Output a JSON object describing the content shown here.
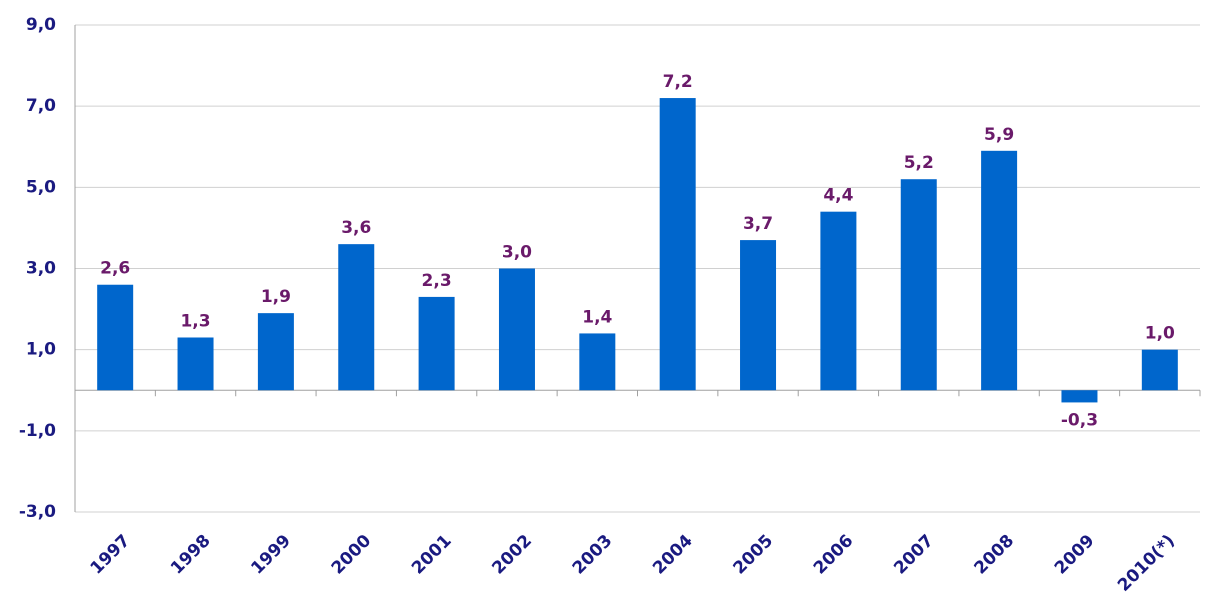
{
  "chart_data": {
    "type": "bar",
    "categories": [
      "1997",
      "1998",
      "1999",
      "2000",
      "2001",
      "2002",
      "2003",
      "2004",
      "2005",
      "2006",
      "2007",
      "2008",
      "2009",
      "2010(*)"
    ],
    "values": [
      2.6,
      1.3,
      1.9,
      3.6,
      2.3,
      3.0,
      1.4,
      7.2,
      3.7,
      4.4,
      5.2,
      5.9,
      -0.3,
      1.0
    ],
    "value_labels": [
      "2,6",
      "1,3",
      "1,9",
      "3,6",
      "2,3",
      "3,0",
      "1,4",
      "7,2",
      "3,7",
      "4,4",
      "5,2",
      "5,9",
      "-0,3",
      "1,0"
    ],
    "color": "#0066cc",
    "ylim": [
      -3,
      9
    ],
    "yticks": [
      {
        "value": -3,
        "label": "-3,0"
      },
      {
        "value": -1,
        "label": "-1,0"
      },
      {
        "value": 1,
        "label": "1,0"
      },
      {
        "value": 3,
        "label": "3,0"
      },
      {
        "value": 5,
        "label": "5,0"
      },
      {
        "value": 7,
        "label": "7,0"
      },
      {
        "value": 9,
        "label": "9,0"
      }
    ],
    "grid": true
  }
}
